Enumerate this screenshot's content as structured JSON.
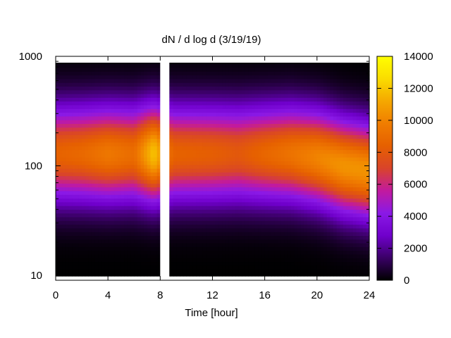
{
  "chart_data": {
    "type": "heatmap",
    "title": "dN / d log d (3/19/19)",
    "xlabel": "Time [hour]",
    "ylabel": "",
    "xlim": [
      0,
      24
    ],
    "ylim": [
      9,
      1000
    ],
    "y_scale": "log",
    "x_ticks": [
      "0",
      "4",
      "8",
      "12",
      "16",
      "20",
      "24"
    ],
    "y_ticks": [
      "10",
      "100",
      "1000"
    ],
    "colorbar": {
      "range": [
        0,
        14000
      ],
      "ticks": [
        "0",
        "2000",
        "4000",
        "6000",
        "8000",
        "10000",
        "12000",
        "14000"
      ],
      "colors": [
        "#000000",
        "#3a0066",
        "#7000cc",
        "#8a19e6",
        "#c21a9e",
        "#d9442a",
        "#e66000",
        "#f07d00",
        "#f5a800",
        "#fadc00",
        "#ffff00"
      ]
    },
    "grid": false,
    "data_gaps_hours": [
      [
        8.0,
        8.7
      ]
    ],
    "series": [
      {
        "x": [
          0,
          2,
          4,
          6,
          7.5,
          9,
          12,
          14,
          16,
          18,
          20,
          22,
          24
        ],
        "peak_diameter": [
          130,
          130,
          130,
          130,
          130,
          130,
          130,
          130,
          130,
          130,
          120,
          100,
          90
        ],
        "peak_value": [
          8500,
          8800,
          9500,
          9000,
          12000,
          8500,
          8300,
          8000,
          8700,
          9300,
          10000,
          10500,
          10500
        ]
      }
    ]
  }
}
